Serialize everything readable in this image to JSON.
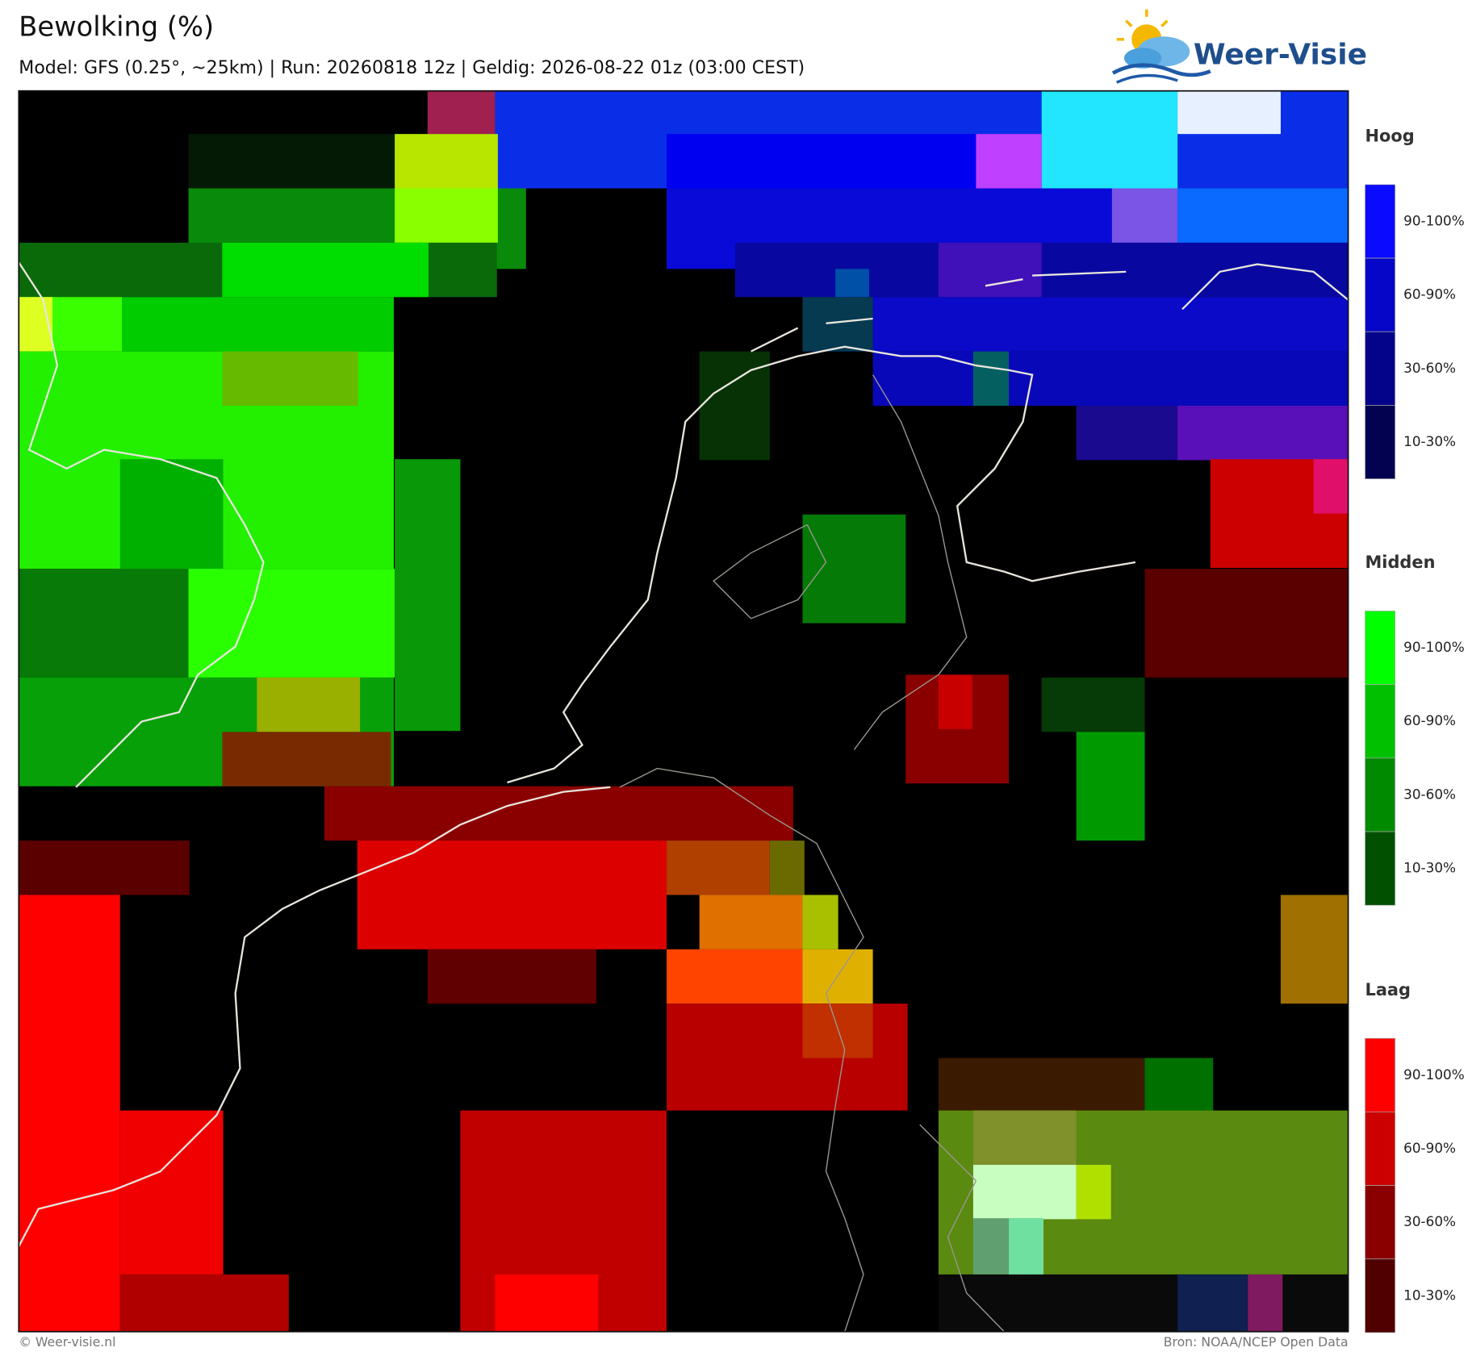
{
  "header": {
    "title": "Bewolking (%)",
    "subtitle": "Model: GFS (0.25°, ~25km)  |  Run: 20260818 12z  |  Geldig: 2026-08-22 01z (03:00 CEST)"
  },
  "logo": {
    "text": "Weer-Visie"
  },
  "legend": [
    {
      "name": "Hoog",
      "labels": [
        "90-100%",
        "60-90%",
        "30-60%",
        "10-30%"
      ]
    },
    {
      "name": "Midden",
      "labels": [
        "90-100%",
        "60-90%",
        "30-60%",
        "10-30%"
      ]
    },
    {
      "name": "Laag",
      "labels": [
        "90-100%",
        "60-90%",
        "30-60%",
        "10-30%"
      ]
    }
  ],
  "footer": {
    "left": "© Weer-visie.nl",
    "right": "Bron: NOAA/NCEP Open Data"
  }
}
